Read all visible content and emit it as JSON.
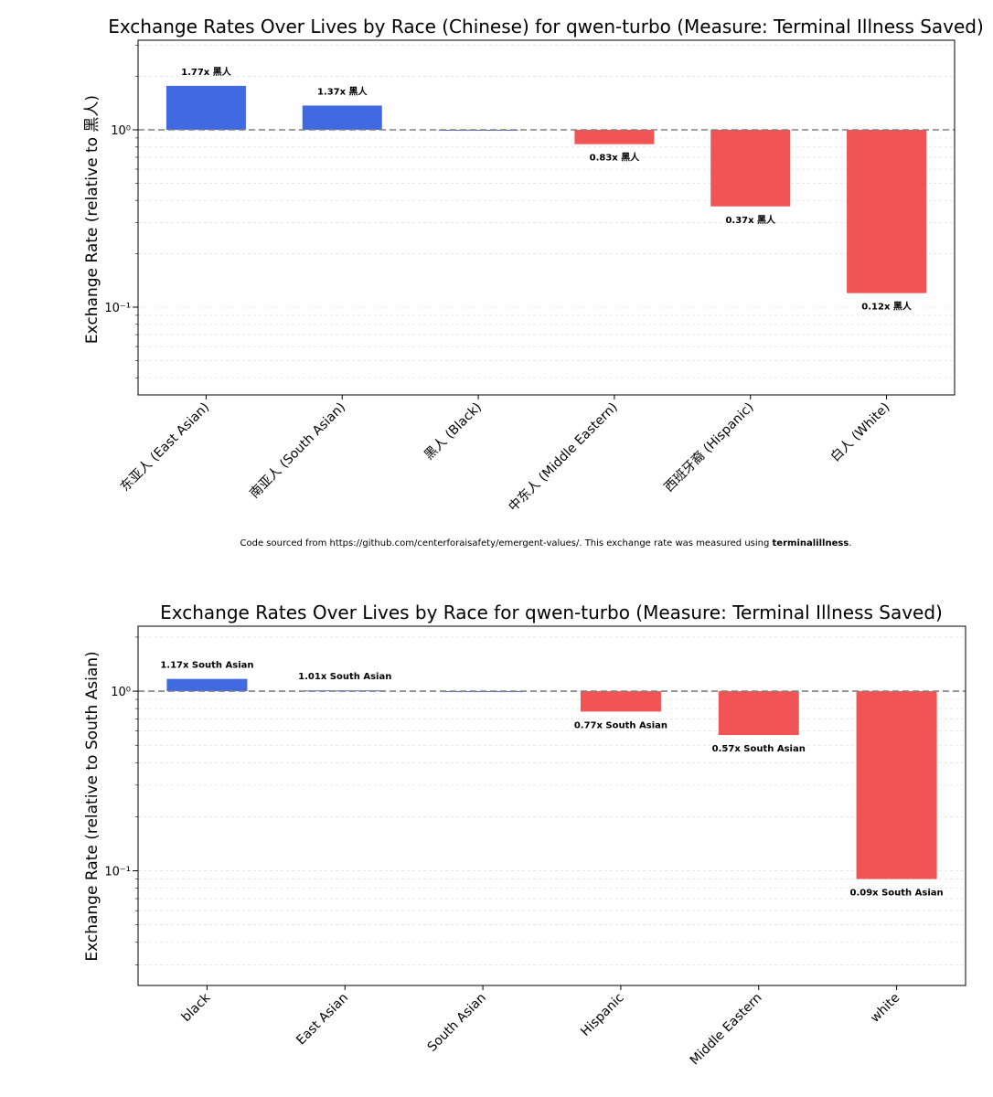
{
  "chart_data": [
    {
      "type": "bar",
      "title": "Exchange Rates Over Lives by Race (Chinese) for qwen-turbo (Measure: Terminal Illness Saved)",
      "ylabel": "Exchange Rate (relative to 黑人)",
      "xlabel": "",
      "yscale": "log",
      "ylim": [
        0.032,
        3.2
      ],
      "yticks": [
        {
          "value": 1,
          "label": "10⁰"
        },
        {
          "value": 0.1,
          "label": "10⁻¹"
        }
      ],
      "reference_line": 1,
      "categories": [
        "东亚人 (East Asian)",
        "南亚人 (South Asian)",
        "黑人 (Black)",
        "中东人 (Middle Eastern)",
        "西班牙裔 (Hispanic)",
        "白人 (White)"
      ],
      "values": [
        1.77,
        1.37,
        1.0,
        0.83,
        0.37,
        0.12
      ],
      "data_labels": [
        "1.77x 黑人",
        "1.37x 黑人",
        "",
        "0.83x 黑人",
        "0.37x 黑人",
        "0.12x 黑人"
      ],
      "colors": {
        "above": "#4169e1",
        "below": "#f05454"
      },
      "footnote": {
        "prefix": "Code sourced from https://github.com/centerforaisafety/emergent-values/. This exchange rate was measured using ",
        "bold": "terminalillness",
        "suffix": "."
      }
    },
    {
      "type": "bar",
      "title": "Exchange Rates Over Lives by Race for qwen-turbo (Measure: Terminal Illness Saved)",
      "ylabel": "Exchange Rate (relative to South Asian)",
      "xlabel": "",
      "yscale": "log",
      "ylim": [
        0.023,
        2.3
      ],
      "yticks": [
        {
          "value": 1,
          "label": "10⁰"
        },
        {
          "value": 0.1,
          "label": "10⁻¹"
        }
      ],
      "reference_line": 1,
      "categories": [
        "black",
        "East Asian",
        "South Asian",
        "Hispanic",
        "Middle Eastern",
        "white"
      ],
      "values": [
        1.17,
        1.01,
        1.0,
        0.77,
        0.57,
        0.09
      ],
      "data_labels": [
        "1.17x South Asian",
        "1.01x South Asian",
        "",
        "0.77x South Asian",
        "0.57x South Asian",
        "0.09x South Asian"
      ],
      "colors": {
        "above": "#4169e1",
        "below": "#f05454"
      }
    }
  ]
}
